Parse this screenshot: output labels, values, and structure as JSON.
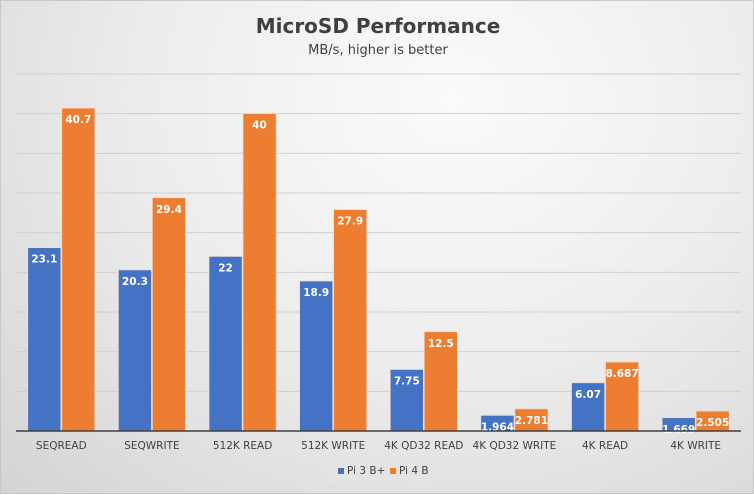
{
  "chart_data": {
    "type": "bar",
    "title": "MicroSD Performance",
    "subtitle": "MB/s, higher is better",
    "categories": [
      "SEQREAD",
      "SEQWRITE",
      "512K READ",
      "512K WRITE",
      "4K QD32 READ",
      "4K QD32 WRITE",
      "4K READ",
      "4K WRITE"
    ],
    "series": [
      {
        "name": "Pi 3 B+",
        "color": "#4472c4",
        "values": [
          23.1,
          20.3,
          22,
          18.9,
          7.75,
          1.964,
          6.07,
          1.669
        ],
        "labels": [
          "23.1",
          "20.3",
          "22",
          "18.9",
          "7.75",
          "1.964",
          "6.07",
          "1.669"
        ]
      },
      {
        "name": "Pi 4 B",
        "color": "#ed7d31",
        "values": [
          40.7,
          29.4,
          40,
          27.9,
          12.5,
          2.781,
          8.687,
          2.505
        ],
        "labels": [
          "40.7",
          "29.4",
          "40",
          "27.9",
          "12.5",
          "2.781",
          "8.687",
          "2.505"
        ]
      }
    ],
    "ylim": [
      0,
      45
    ],
    "ytick_step": 5,
    "y_tick_labels_shown": false,
    "grid": true,
    "legend": "bottom"
  }
}
